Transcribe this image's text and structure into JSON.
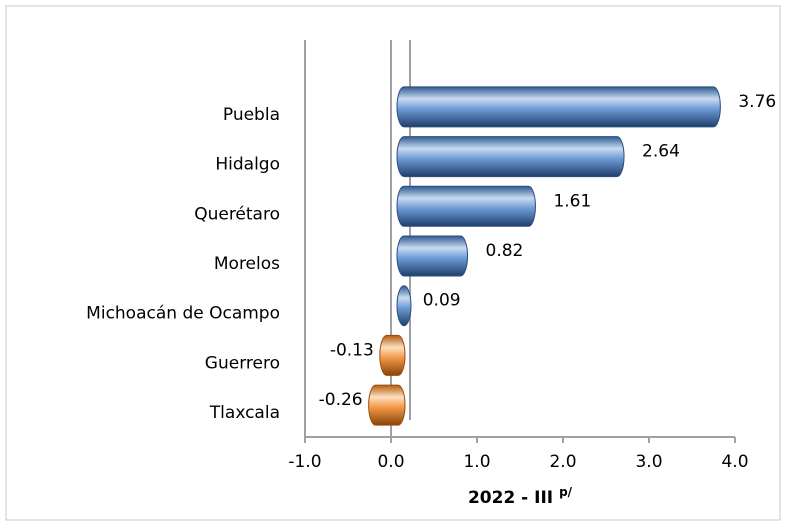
{
  "chart_data": {
    "type": "bar",
    "orientation": "horizontal",
    "x_label": "2022 - III",
    "x_label_superscript": "p/",
    "categories": [
      "Puebla",
      "Hidalgo",
      "Querétaro",
      "Morelos",
      "Michoacán de Ocampo",
      "Guerrero",
      "Tlaxcala"
    ],
    "values": [
      3.76,
      2.64,
      1.61,
      0.82,
      0.09,
      -0.13,
      -0.26
    ],
    "positive_color": "#4f81bd",
    "negative_color": "#f79646",
    "xlim": [
      -1,
      4
    ],
    "xticks": [
      {
        "value": -1,
        "label": "-1.0"
      },
      {
        "value": 0,
        "label": "0.0"
      },
      {
        "value": 1,
        "label": "1.0"
      },
      {
        "value": 2,
        "label": "2.0"
      },
      {
        "value": 3,
        "label": "3.0"
      },
      {
        "value": 4,
        "label": "4.0"
      }
    ]
  }
}
